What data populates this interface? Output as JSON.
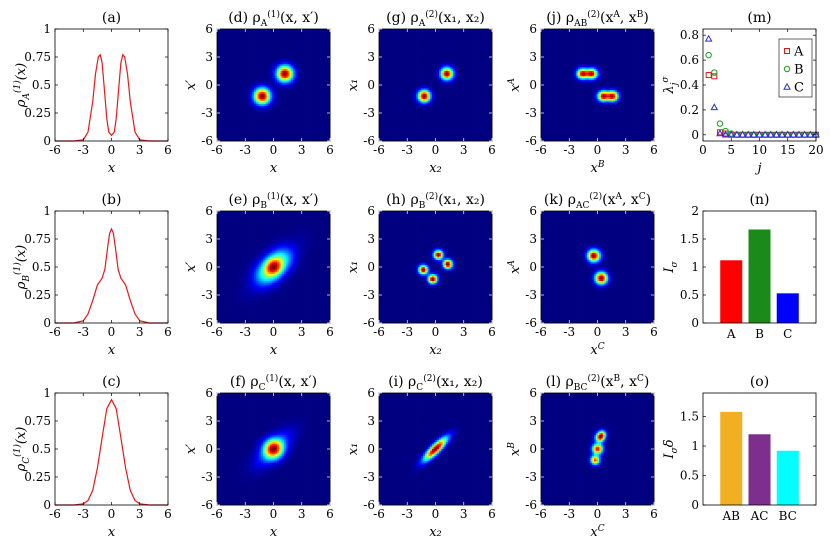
{
  "chart_data": [
    {
      "id": "a",
      "type": "line",
      "title": "(a)",
      "ylabel": "ρ_A^(1)(x)",
      "xlabel": "x",
      "xlim": [
        -6,
        6
      ],
      "ylim": [
        0,
        1
      ],
      "xticks": [
        -6,
        -3,
        0,
        3,
        6
      ],
      "yticks": [
        0,
        0.25,
        0.5,
        0.75,
        1
      ],
      "series": [
        {
          "color": "#e41a1c",
          "x": [
            -6,
            -5,
            -4,
            -3,
            -2.5,
            -2,
            -1.7,
            -1.4,
            -1.2,
            -1,
            -0.8,
            -0.5,
            -0.3,
            0,
            0.3,
            0.5,
            0.8,
            1,
            1.2,
            1.4,
            1.7,
            2,
            2.5,
            3,
            4,
            5,
            6
          ],
          "y": [
            0,
            0,
            0,
            0.01,
            0.08,
            0.35,
            0.6,
            0.75,
            0.77,
            0.7,
            0.5,
            0.2,
            0.08,
            0.05,
            0.08,
            0.2,
            0.5,
            0.7,
            0.77,
            0.75,
            0.6,
            0.35,
            0.08,
            0.01,
            0,
            0,
            0
          ]
        }
      ]
    },
    {
      "id": "b",
      "type": "line",
      "title": "(b)",
      "ylabel": "ρ_B^(1)(x)",
      "xlabel": "x",
      "xlim": [
        -6,
        6
      ],
      "ylim": [
        0,
        1
      ],
      "xticks": [
        -6,
        -3,
        0,
        3,
        6
      ],
      "yticks": [
        0,
        0.25,
        0.5,
        0.75,
        1
      ],
      "series": [
        {
          "color": "#e41a1c",
          "x": [
            -6,
            -5,
            -4,
            -3,
            -2.5,
            -2,
            -1.5,
            -1,
            -0.7,
            -0.4,
            -0.2,
            0,
            0.2,
            0.4,
            0.7,
            1,
            1.5,
            2,
            2.5,
            3,
            4,
            5,
            6
          ],
          "y": [
            0,
            0,
            0,
            0.02,
            0.08,
            0.2,
            0.34,
            0.4,
            0.48,
            0.68,
            0.8,
            0.84,
            0.8,
            0.68,
            0.48,
            0.4,
            0.34,
            0.2,
            0.08,
            0.02,
            0,
            0,
            0
          ]
        }
      ]
    },
    {
      "id": "c",
      "type": "line",
      "title": "(c)",
      "ylabel": "ρ_C^(1)(x)",
      "xlabel": "x",
      "xlim": [
        -6,
        6
      ],
      "ylim": [
        0,
        1
      ],
      "xticks": [
        -6,
        -3,
        0,
        3,
        6
      ],
      "yticks": [
        0,
        0.25,
        0.5,
        0.75,
        1
      ],
      "series": [
        {
          "color": "#e41a1c",
          "x": [
            -6,
            -4,
            -3,
            -2.5,
            -2,
            -1.5,
            -1,
            -0.5,
            0,
            0.5,
            1,
            1.5,
            2,
            2.5,
            3,
            4,
            6
          ],
          "y": [
            0,
            0,
            0.01,
            0.04,
            0.13,
            0.33,
            0.6,
            0.86,
            0.94,
            0.86,
            0.6,
            0.33,
            0.13,
            0.04,
            0.01,
            0,
            0
          ]
        }
      ]
    },
    {
      "id": "d",
      "type": "heatmap",
      "title": "(d) ρ_A^(1)(x, x′)",
      "xlabel": "x",
      "ylabel": "x′",
      "xlim": [
        -6,
        6
      ],
      "ylim": [
        -6,
        6
      ],
      "xticks": [
        -6,
        -3,
        0,
        3,
        6
      ],
      "yticks": [
        -6,
        -3,
        0,
        3,
        6
      ],
      "blobs": [
        {
          "x": 1.2,
          "y": 1.2,
          "sx": 0.6,
          "sy": 0.6,
          "amp": 1.0,
          "rho": 0
        },
        {
          "x": -1.2,
          "y": -1.2,
          "sx": 0.6,
          "sy": 0.6,
          "amp": 1.0,
          "rho": 0
        }
      ]
    },
    {
      "id": "g",
      "type": "heatmap",
      "title": "(g) ρ_A^(2)(x₁, x₂)",
      "xlabel": "x₂",
      "ylabel": "x₁",
      "xlim": [
        -6,
        6
      ],
      "ylim": [
        -6,
        6
      ],
      "xticks": [
        -6,
        -3,
        0,
        3,
        6
      ],
      "yticks": [
        -6,
        -3,
        0,
        3,
        6
      ],
      "blobs": [
        {
          "x": 1.2,
          "y": 1.2,
          "sx": 0.45,
          "sy": 0.45,
          "amp": 1.0,
          "rho": 0
        },
        {
          "x": -1.2,
          "y": -1.2,
          "sx": 0.45,
          "sy": 0.45,
          "amp": 1.0,
          "rho": 0
        }
      ]
    },
    {
      "id": "j",
      "type": "heatmap",
      "title": "(j) ρ_AB^(2)(x^A, x^B)",
      "xlabel": "x^B",
      "ylabel": "x^A",
      "xlim": [
        -6,
        6
      ],
      "ylim": [
        -6,
        6
      ],
      "xticks": [
        -6,
        -3,
        0,
        3,
        6
      ],
      "yticks": [
        -6,
        -3,
        0,
        3,
        6
      ],
      "blobs": [
        {
          "x": -1.6,
          "y": 1.2,
          "sx": 0.4,
          "sy": 0.38,
          "amp": 1.0,
          "rho": 0
        },
        {
          "x": -0.6,
          "y": 1.2,
          "sx": 0.4,
          "sy": 0.38,
          "amp": 1.0,
          "rho": 0
        },
        {
          "x": 0.6,
          "y": -1.2,
          "sx": 0.4,
          "sy": 0.38,
          "amp": 1.0,
          "rho": 0
        },
        {
          "x": 1.6,
          "y": -1.2,
          "sx": 0.4,
          "sy": 0.38,
          "amp": 1.0,
          "rho": 0
        }
      ]
    },
    {
      "id": "m",
      "type": "scatter",
      "title": "(m)",
      "xlabel": "j",
      "ylabel": "λ_j^σ",
      "xlim": [
        0,
        20
      ],
      "ylim": [
        -0.05,
        0.85
      ],
      "xticks": [
        0,
        5,
        10,
        15,
        20
      ],
      "yticks": [
        0,
        0.2,
        0.4,
        0.6,
        0.8
      ],
      "legend_position": "top-right",
      "series": [
        {
          "name": "A",
          "marker": "square",
          "color": "#e41a1c",
          "x": [
            1,
            2,
            3,
            4,
            5,
            6,
            7,
            8,
            9,
            10,
            11,
            12,
            13,
            14,
            15,
            16,
            17,
            18,
            19,
            20
          ],
          "y": [
            0.48,
            0.47,
            0.02,
            0.01,
            0,
            0,
            0,
            0,
            0,
            0,
            0,
            0,
            0,
            0,
            0,
            0,
            0,
            0,
            0,
            0
          ]
        },
        {
          "name": "B",
          "marker": "circle",
          "color": "#1a9e1a",
          "x": [
            1,
            2,
            3,
            4,
            5,
            6,
            7,
            8,
            9,
            10,
            11,
            12,
            13,
            14,
            15,
            16,
            17,
            18,
            19,
            20
          ],
          "y": [
            0.64,
            0.5,
            0.09,
            0.03,
            0.01,
            0,
            0,
            0,
            0,
            0,
            0,
            0,
            0,
            0,
            0,
            0,
            0,
            0,
            0,
            0
          ]
        },
        {
          "name": "C",
          "marker": "triangle",
          "color": "#2b2bdc",
          "x": [
            1,
            2,
            3,
            4,
            5,
            6,
            7,
            8,
            9,
            10,
            11,
            12,
            13,
            14,
            15,
            16,
            17,
            18,
            19,
            20
          ],
          "y": [
            0.77,
            0.22,
            0.01,
            0,
            0,
            0,
            0,
            0,
            0,
            0,
            0,
            0,
            0,
            0,
            0,
            0,
            0,
            0,
            0,
            0
          ]
        }
      ]
    },
    {
      "id": "e",
      "type": "heatmap",
      "title": "(e) ρ_B^(1)(x, x′)",
      "xlabel": "x",
      "ylabel": "x′",
      "xlim": [
        -6,
        6
      ],
      "ylim": [
        -6,
        6
      ],
      "xticks": [
        -6,
        -3,
        0,
        3,
        6
      ],
      "yticks": [
        -6,
        -3,
        0,
        3,
        6
      ],
      "blobs": [
        {
          "x": 0,
          "y": 0,
          "sx": 0.65,
          "sy": 0.65,
          "amp": 1.0,
          "rho": 0
        },
        {
          "x": 0.8,
          "y": 0.8,
          "sx": 0.9,
          "sy": 0.9,
          "amp": 0.45,
          "rho": 0
        },
        {
          "x": -0.8,
          "y": -0.8,
          "sx": 0.9,
          "sy": 0.9,
          "amp": 0.45,
          "rho": 0
        },
        {
          "x": 0,
          "y": 0,
          "sx": 1.6,
          "sy": 1.6,
          "amp": 0.3,
          "rho": 0.75
        }
      ]
    },
    {
      "id": "h",
      "type": "heatmap",
      "title": "(h) ρ_B^(2)(x₁, x₂)",
      "xlabel": "x₂",
      "ylabel": "x₁",
      "xlim": [
        -6,
        6
      ],
      "ylim": [
        -6,
        6
      ],
      "xticks": [
        -6,
        -3,
        0,
        3,
        6
      ],
      "yticks": [
        -6,
        -3,
        0,
        3,
        6
      ],
      "blobs": [
        {
          "x": 0.3,
          "y": 1.3,
          "sx": 0.33,
          "sy": 0.33,
          "amp": 1.0,
          "rho": 0
        },
        {
          "x": -1.3,
          "y": -0.3,
          "sx": 0.33,
          "sy": 0.33,
          "amp": 1.0,
          "rho": 0
        },
        {
          "x": 1.3,
          "y": 0.3,
          "sx": 0.33,
          "sy": 0.33,
          "amp": 1.0,
          "rho": 0
        },
        {
          "x": -0.3,
          "y": -1.3,
          "sx": 0.33,
          "sy": 0.33,
          "amp": 1.0,
          "rho": 0
        }
      ]
    },
    {
      "id": "k",
      "type": "heatmap",
      "title": "(k) ρ_AC^(2)(x^A, x^C)",
      "xlabel": "x^C",
      "ylabel": "x^A",
      "xlim": [
        -6,
        6
      ],
      "ylim": [
        -6,
        6
      ],
      "xticks": [
        -6,
        -3,
        0,
        3,
        6
      ],
      "yticks": [
        -6,
        -3,
        0,
        3,
        6
      ],
      "blobs": [
        {
          "x": -0.4,
          "y": 1.2,
          "sx": 0.45,
          "sy": 0.45,
          "amp": 1.0,
          "rho": 0
        },
        {
          "x": 0.4,
          "y": -1.2,
          "sx": 0.45,
          "sy": 0.45,
          "amp": 1.0,
          "rho": 0
        }
      ]
    },
    {
      "id": "n",
      "type": "bar",
      "title": "(n)",
      "ylabel": "I_σ",
      "xlabel": "",
      "ylim": [
        0,
        2
      ],
      "yticks": [
        0,
        0.5,
        1,
        1.5,
        2
      ],
      "categories": [
        "A",
        "B",
        "C"
      ],
      "values": [
        1.12,
        1.67,
        0.53
      ],
      "colors": [
        "#ff0000",
        "#1a8a1a",
        "#0000ff"
      ]
    },
    {
      "id": "f",
      "type": "heatmap",
      "title": "(f) ρ_C^(1)(x, x′)",
      "xlabel": "x",
      "ylabel": "x′",
      "xlim": [
        -6,
        6
      ],
      "ylim": [
        -6,
        6
      ],
      "xticks": [
        -6,
        -3,
        0,
        3,
        6
      ],
      "yticks": [
        -6,
        -3,
        0,
        3,
        6
      ],
      "blobs": [
        {
          "x": 0,
          "y": 0,
          "sx": 0.7,
          "sy": 0.7,
          "amp": 1.0,
          "rho": 0
        },
        {
          "x": 0,
          "y": 0,
          "sx": 1.3,
          "sy": 1.3,
          "amp": 0.35,
          "rho": 0.7
        }
      ]
    },
    {
      "id": "i",
      "type": "heatmap",
      "title": "(i) ρ_C^(2)(x₁, x₂)",
      "xlabel": "x₂",
      "ylabel": "x₁",
      "xlim": [
        -6,
        6
      ],
      "ylim": [
        -6,
        6
      ],
      "xticks": [
        -6,
        -3,
        0,
        3,
        6
      ],
      "yticks": [
        -6,
        -3,
        0,
        3,
        6
      ],
      "blobs": [
        {
          "x": 0,
          "y": 0,
          "sx": 0.85,
          "sy": 0.85,
          "amp": 1.0,
          "rho": 0.85
        }
      ]
    },
    {
      "id": "l",
      "type": "heatmap",
      "title": "(l) ρ_BC^(2)(x^B, x^C)",
      "xlabel": "x^C",
      "ylabel": "x^B",
      "xlim": [
        -6,
        6
      ],
      "ylim": [
        -6,
        6
      ],
      "xticks": [
        -6,
        -3,
        0,
        3,
        6
      ],
      "yticks": [
        -6,
        -3,
        0,
        3,
        6
      ],
      "blobs": [
        {
          "x": 0,
          "y": 0,
          "sx": 0.38,
          "sy": 0.38,
          "amp": 1.0,
          "rho": 0
        },
        {
          "x": 0.25,
          "y": 1.2,
          "sx": 0.33,
          "sy": 0.33,
          "amp": 0.9,
          "rho": 0
        },
        {
          "x": -0.25,
          "y": -1.2,
          "sx": 0.33,
          "sy": 0.33,
          "amp": 0.9,
          "rho": 0
        },
        {
          "x": 0.5,
          "y": 1.6,
          "sx": 0.3,
          "sy": 0.3,
          "amp": 0.6,
          "rho": 0
        }
      ]
    },
    {
      "id": "o",
      "type": "bar",
      "title": "(o)",
      "ylabel": "I_σδ",
      "xlabel": "",
      "ylim": [
        0,
        1.9
      ],
      "yticks": [
        0,
        0.5,
        1,
        1.5
      ],
      "categories": [
        "AB",
        "AC",
        "BC"
      ],
      "values": [
        1.58,
        1.2,
        0.92
      ],
      "colors": [
        "#f0b021",
        "#7e2f8e",
        "#00ffff"
      ]
    }
  ]
}
